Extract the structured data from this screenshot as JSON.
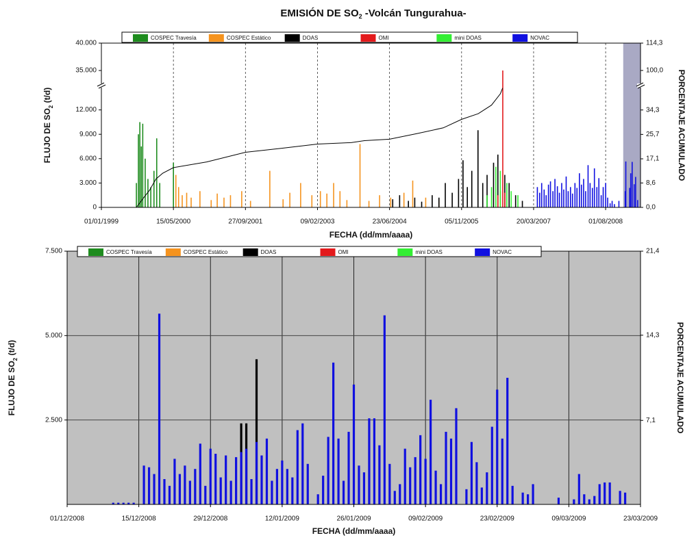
{
  "chart_data": [
    {
      "type": "bar",
      "title": [
        "EMISIÓN DE SO",
        "2",
        "  -Volcán Tungurahua-"
      ],
      "y_label": [
        "FLUJO DE SO",
        "2",
        " (t/d)"
      ],
      "y2_label": "PORCENTAJE ACUMULADO",
      "x_label": "FECHA (dd/mm/aaaa)",
      "xlim": [
        "01/01/1999",
        "31/03/2009"
      ],
      "xticks": [
        "01/01/1999",
        "15/05/2000",
        "27/09/2001",
        "09/02/2003",
        "23/06/2004",
        "05/11/2005",
        "20/03/2007",
        "01/08/2008"
      ],
      "ylim": [
        0,
        40000
      ],
      "ybreak": [
        15000,
        32250
      ],
      "yticks": [
        0,
        {
          "value": 3000,
          "label": "3.000"
        },
        {
          "value": 6000,
          "label": "6.000"
        },
        {
          "value": 9000,
          "label": "9.000"
        },
        {
          "value": 12000,
          "label": "12.000"
        },
        {
          "value": 35000,
          "label": "35.000"
        },
        {
          "value": 40000,
          "label": "40.000"
        }
      ],
      "y2lim": [
        0,
        114.3
      ],
      "y2break": [
        42.9,
        92.1
      ],
      "y2ticks": [
        {
          "value": 0,
          "label": "0,0"
        },
        {
          "value": 8.6,
          "label": "8,6"
        },
        {
          "value": 17.1,
          "label": "17,1"
        },
        {
          "value": 25.7,
          "label": "25,7"
        },
        {
          "value": 34.3,
          "label": "34,3"
        },
        {
          "value": 100,
          "label": "100,0"
        },
        {
          "value": 114.3,
          "label": "114,3"
        }
      ],
      "grid": "x",
      "background": "#ffffff",
      "highlight": [
        "01/12/2008",
        "31/03/2009"
      ],
      "highlight_color": "#a9a9c4",
      "series": [
        {
          "name": "COSPEC Travesía",
          "color": "#1e8c1e",
          "x": [
            "01/09/1999",
            "15/09/1999",
            "25/09/1999",
            "05/10/1999",
            "15/10/1999",
            "01/11/1999",
            "20/11/1999",
            "10/12/1999",
            "01/01/2000",
            "20/01/2000",
            "10/02/2000",
            "15/05/2000"
          ],
          "values": [
            3000,
            9000,
            10500,
            7500,
            10300,
            6000,
            3500,
            2500,
            4500,
            8500,
            3000,
            5500
          ]
        },
        {
          "name": "COSPEC Estático",
          "color": "#f5931e",
          "x": [
            "01/06/2000",
            "20/06/2000",
            "15/07/2000",
            "15/08/2000",
            "15/09/2000",
            "15/11/2000",
            "01/02/2001",
            "15/03/2001",
            "01/05/2001",
            "15/06/2001",
            "01/09/2001",
            "01/11/2001",
            "15/03/2002",
            "15/06/2002",
            "01/08/2002",
            "15/10/2002",
            "01/01/2003",
            "01/03/2003",
            "15/04/2003",
            "01/06/2003",
            "15/07/2003",
            "01/09/2003",
            "01/12/2003",
            "01/02/2004",
            "15/04/2004",
            "01/07/2004",
            "01/10/2004",
            "01/12/2004",
            "01/03/2005",
            "01/06/2005"
          ],
          "values": [
            4000,
            2500,
            1500,
            1800,
            1200,
            2000,
            900,
            1700,
            1200,
            1500,
            2000,
            800,
            4500,
            1000,
            1800,
            3000,
            1500,
            2000,
            1700,
            3000,
            2000,
            900,
            7800,
            800,
            1500,
            1200,
            1800,
            3300,
            1200,
            900
          ]
        },
        {
          "name": "DOAS",
          "color": "#000000",
          "x": [
            "15/07/2004",
            "01/09/2004",
            "01/11/2004",
            "15/12/2004",
            "01/02/2005",
            "15/04/2005",
            "01/06/2005",
            "15/07/2005",
            "01/09/2005",
            "15/10/2005",
            "15/11/2005",
            "15/12/2005",
            "15/01/2006",
            "27/02/2006",
            "01/04/2006",
            "01/05/2006",
            "15/06/2006",
            "15/07/2006",
            "01/09/2006",
            "01/10/2006",
            "15/11/2006",
            "01/01/2007"
          ],
          "values": [
            1000,
            1500,
            800,
            1200,
            700,
            1500,
            1200,
            3000,
            1800,
            3500,
            5800,
            2500,
            4500,
            9500,
            3000,
            4000,
            5500,
            6500,
            4000,
            3000,
            1500,
            800
          ]
        },
        {
          "name": "OMI",
          "color": "#e31a1c",
          "x": [
            "15/07/2006",
            "01/08/2006",
            "18/08/2006",
            "01/09/2006"
          ],
          "values": [
            1500,
            2000,
            35000,
            1800
          ]
        },
        {
          "name": "mini DOAS",
          "color": "#33ee33",
          "x": [
            "01/05/2006",
            "01/06/2006",
            "01/07/2006",
            "01/08/2006",
            "15/09/2006",
            "15/10/2006",
            "01/12/2006"
          ],
          "values": [
            1500,
            2500,
            5000,
            4500,
            3000,
            2000,
            1500
          ]
        },
        {
          "name": "NOVAC",
          "color": "#1010e0",
          "x": [
            "15/04/2007",
            "01/05/2007",
            "15/05/2007",
            "01/06/2007",
            "15/06/2007",
            "01/07/2007",
            "15/07/2007",
            "01/08/2007",
            "15/08/2007",
            "01/09/2007",
            "15/09/2007",
            "01/10/2007",
            "15/10/2007",
            "01/11/2007",
            "15/11/2007",
            "01/12/2007",
            "15/12/2007",
            "01/01/2008",
            "15/01/2008",
            "01/02/2008",
            "15/02/2008",
            "01/03/2008",
            "15/03/2008",
            "01/04/2008",
            "15/04/2008",
            "01/05/2008",
            "15/05/2008",
            "01/06/2008",
            "15/06/2008",
            "01/07/2008",
            "15/07/2008",
            "01/08/2008",
            "15/08/2008",
            "01/09/2008",
            "15/09/2008",
            "01/10/2008",
            "01/11/2008",
            "15/12/2008",
            "19/12/2008",
            "15/01/2009",
            "22/01/2009",
            "01/02/2009",
            "15/02/2009",
            "25/02/2009",
            "11/03/2009"
          ],
          "values": [
            2500,
            1800,
            3000,
            2200,
            1500,
            2800,
            3200,
            2000,
            3500,
            2600,
            1800,
            3000,
            2200,
            3800,
            2000,
            2500,
            1700,
            3000,
            2400,
            4200,
            2800,
            3500,
            2000,
            5200,
            3000,
            2400,
            4800,
            2500,
            3600,
            1500,
            2500,
            3000,
            1200,
            500,
            800,
            400,
            800,
            2000,
            5650,
            2400,
            4200,
            5600,
            2850,
            3750,
            900
          ]
        }
      ],
      "cumulative": {
        "color": "#000000",
        "axis": "y2",
        "x": [
          "01/09/1999",
          "15/10/1999",
          "01/12/1999",
          "15/01/2000",
          "01/03/2000",
          "15/05/2000",
          "01/01/2001",
          "27/09/2001",
          "01/06/2002",
          "09/02/2003",
          "01/10/2003",
          "01/01/2004",
          "23/06/2004",
          "01/01/2005",
          "01/07/2005",
          "05/11/2005",
          "01/03/2006",
          "01/06/2006",
          "01/08/2006",
          "17/08/2006"
        ],
        "values": [
          0,
          3,
          6,
          10,
          12,
          14,
          16,
          19.4,
          20.8,
          22.3,
          22.8,
          23.5,
          24,
          26,
          28,
          31,
          33,
          36,
          40,
          42
        ]
      }
    },
    {
      "type": "bar",
      "y_label": [
        "FLUJO DE SO",
        "2",
        " (t/d)"
      ],
      "y2_label": "PORCENTAJE ACUMULADO",
      "x_label": "FECHA (dd/mm/aaaa)",
      "xlim": [
        "01/12/2008",
        "23/03/2009"
      ],
      "xticks": [
        "01/12/2008",
        "15/12/2008",
        "29/12/2008",
        "12/01/2009",
        "26/01/2009",
        "09/02/2009",
        "23/02/2009",
        "09/03/2009",
        "23/03/2009"
      ],
      "ylim": [
        0,
        7500
      ],
      "yticks": [
        {
          "value": 2500,
          "label": "2.500"
        },
        {
          "value": 5000,
          "label": "5.000"
        },
        {
          "value": 7500,
          "label": "7.500"
        }
      ],
      "y2lim": [
        0,
        21.4
      ],
      "y2ticks": [
        {
          "value": 7.1,
          "label": "7,1"
        },
        {
          "value": 14.3,
          "label": "14,3"
        },
        {
          "value": 21.4,
          "label": "21,4"
        }
      ],
      "grid": "both",
      "background": "#c0c0c0",
      "series": [
        {
          "name": "COSPEC Travesía",
          "color": "#1e8c1e",
          "x": [],
          "values": []
        },
        {
          "name": "COSPEC Estático",
          "color": "#f5931e",
          "x": [],
          "values": []
        },
        {
          "name": "DOAS",
          "color": "#000000",
          "x": [
            "04/01/2009",
            "05/01/2009",
            "07/01/2009"
          ],
          "values": [
            2400,
            2400,
            4300
          ]
        },
        {
          "name": "OMI",
          "color": "#e31a1c",
          "x": [],
          "values": []
        },
        {
          "name": "mini DOAS",
          "color": "#33ee33",
          "x": [],
          "values": []
        },
        {
          "name": "NOVAC",
          "color": "#1010e0",
          "x": [
            "10/12/2008",
            "11/12/2008",
            "12/12/2008",
            "13/12/2008",
            "14/12/2008",
            "16/12/2008",
            "17/12/2008",
            "18/12/2008",
            "19/12/2008",
            "20/12/2008",
            "21/12/2008",
            "22/12/2008",
            "23/12/2008",
            "24/12/2008",
            "25/12/2008",
            "26/12/2008",
            "27/12/2008",
            "28/12/2008",
            "29/12/2008",
            "30/12/2008",
            "31/12/2008",
            "01/01/2009",
            "02/01/2009",
            "03/01/2009",
            "04/01/2009",
            "05/01/2009",
            "06/01/2009",
            "07/01/2009",
            "08/01/2009",
            "09/01/2009",
            "10/01/2009",
            "11/01/2009",
            "12/01/2009",
            "13/01/2009",
            "14/01/2009",
            "15/01/2009",
            "16/01/2009",
            "17/01/2009",
            "19/01/2009",
            "20/01/2009",
            "21/01/2009",
            "22/01/2009",
            "23/01/2009",
            "24/01/2009",
            "25/01/2009",
            "26/01/2009",
            "27/01/2009",
            "28/01/2009",
            "29/01/2009",
            "30/01/2009",
            "31/01/2009",
            "01/02/2009",
            "02/02/2009",
            "03/02/2009",
            "04/02/2009",
            "05/02/2009",
            "06/02/2009",
            "07/02/2009",
            "08/02/2009",
            "09/02/2009",
            "10/02/2009",
            "11/02/2009",
            "12/02/2009",
            "13/02/2009",
            "14/02/2009",
            "15/02/2009",
            "17/02/2009",
            "18/02/2009",
            "19/02/2009",
            "20/02/2009",
            "21/02/2009",
            "22/02/2009",
            "23/02/2009",
            "24/02/2009",
            "25/02/2009",
            "26/02/2009",
            "28/02/2009",
            "01/03/2009",
            "02/03/2009",
            "07/03/2009",
            "10/03/2009",
            "11/03/2009",
            "12/03/2009",
            "13/03/2009",
            "14/03/2009",
            "15/03/2009",
            "16/03/2009",
            "17/03/2009",
            "19/03/2009",
            "20/03/2009"
          ],
          "values": [
            50,
            50,
            50,
            50,
            50,
            1150,
            1100,
            900,
            5650,
            750,
            550,
            1350,
            900,
            1150,
            700,
            1050,
            1800,
            550,
            1650,
            1500,
            800,
            1450,
            700,
            1400,
            1550,
            1650,
            750,
            1850,
            1450,
            1950,
            700,
            1050,
            1300,
            1050,
            800,
            2200,
            2400,
            1200,
            300,
            850,
            2000,
            4200,
            1950,
            700,
            2150,
            3550,
            1150,
            950,
            2550,
            2550,
            1750,
            5600,
            1200,
            400,
            600,
            1650,
            1100,
            1400,
            2050,
            1350,
            3100,
            1000,
            600,
            2150,
            1950,
            2850,
            450,
            1850,
            1250,
            500,
            950,
            2300,
            3400,
            1950,
            3750,
            550,
            350,
            300,
            600,
            200,
            150,
            900,
            300,
            150,
            250,
            600,
            650,
            650,
            400,
            350
          ]
        }
      ]
    }
  ]
}
